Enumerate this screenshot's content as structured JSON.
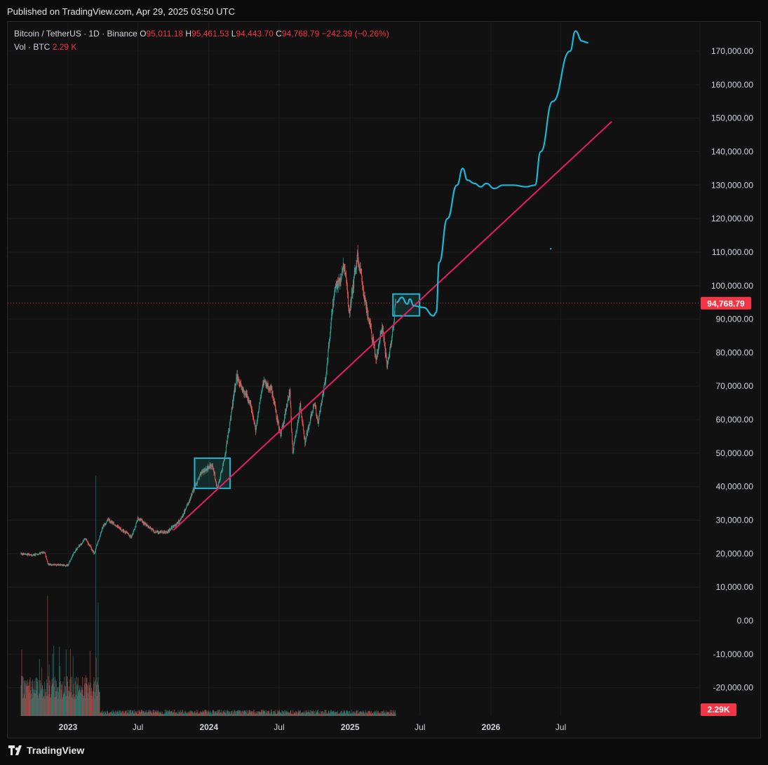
{
  "header": {
    "publish_text": "Published on TradingView.com, Apr 29, 2025 03:50 UTC"
  },
  "legend": {
    "symbol": "Bitcoin / TetherUS · 1D · Binance",
    "open_label": "O",
    "open": "95,011.18",
    "high_label": "H",
    "high": "95,461.53",
    "low_label": "L",
    "low": "94,443.70",
    "close_label": "C",
    "close": "94,768.79",
    "change": "−242.39 (−0.26%)",
    "volume_label": "Vol · BTC",
    "volume": "2.29 K"
  },
  "footer": {
    "brand": "TradingView"
  },
  "colors": {
    "background": "#111111",
    "up": "#26a69a",
    "down": "#ef5350",
    "trendline": "#e91e63",
    "projection": "#1fb6d4",
    "price_label": "#f23645"
  },
  "chart_data": {
    "type": "candlestick",
    "symbol": "BTCUSDT",
    "interval": "1D",
    "ylim": [
      -25000,
      180000
    ],
    "y_ticks": [
      170000,
      160000,
      150000,
      140000,
      130000,
      120000,
      110000,
      100000,
      90000,
      80000,
      70000,
      60000,
      50000,
      40000,
      30000,
      20000,
      10000,
      0,
      -10000,
      -20000
    ],
    "y_tick_labels": [
      "170,000.00",
      "160,000.00",
      "150,000.00",
      "140,000.00",
      "130,000.00",
      "120,000.00",
      "110,000.00",
      "100,000.00",
      "90,000.00",
      "80,000.00",
      "70,000.00",
      "60,000.00",
      "50,000.00",
      "40,000.00",
      "30,000.00",
      "20,000.00",
      "10,000.00",
      "0.00",
      "-10,000.00",
      "-20,000.00"
    ],
    "x_ticks": [
      {
        "date": "2023-01-01",
        "label": "2023",
        "bold": true
      },
      {
        "date": "2023-07-01",
        "label": "Jul",
        "bold": false
      },
      {
        "date": "2024-01-01",
        "label": "2024",
        "bold": true
      },
      {
        "date": "2024-07-01",
        "label": "Jul",
        "bold": false
      },
      {
        "date": "2025-01-01",
        "label": "2025",
        "bold": true
      },
      {
        "date": "2025-07-01",
        "label": "Jul",
        "bold": false
      },
      {
        "date": "2026-01-01",
        "label": "2026",
        "bold": true
      },
      {
        "date": "2026-07-01",
        "label": "Jul",
        "bold": false
      }
    ],
    "last_price": 94768.79,
    "last_price_label": "94,768.79",
    "volume_label": "2.29K",
    "price_path": [
      {
        "date": "2022-09-01",
        "price": 20000
      },
      {
        "date": "2022-10-01",
        "price": 19500
      },
      {
        "date": "2022-11-01",
        "price": 20500
      },
      {
        "date": "2022-11-10",
        "price": 16800
      },
      {
        "date": "2022-12-31",
        "price": 16500
      },
      {
        "date": "2023-01-20",
        "price": 21000
      },
      {
        "date": "2023-02-15",
        "price": 24500
      },
      {
        "date": "2023-03-10",
        "price": 20000
      },
      {
        "date": "2023-04-01",
        "price": 28000
      },
      {
        "date": "2023-04-15",
        "price": 30200
      },
      {
        "date": "2023-06-15",
        "price": 25000
      },
      {
        "date": "2023-07-01",
        "price": 30500
      },
      {
        "date": "2023-08-15",
        "price": 26500
      },
      {
        "date": "2023-09-15",
        "price": 26500
      },
      {
        "date": "2023-10-20",
        "price": 30000
      },
      {
        "date": "2023-11-15",
        "price": 37000
      },
      {
        "date": "2023-12-10",
        "price": 44000
      },
      {
        "date": "2024-01-10",
        "price": 46500
      },
      {
        "date": "2024-01-23",
        "price": 39500
      },
      {
        "date": "2024-02-10",
        "price": 48000
      },
      {
        "date": "2024-03-13",
        "price": 73000
      },
      {
        "date": "2024-04-20",
        "price": 64000
      },
      {
        "date": "2024-05-01",
        "price": 57000
      },
      {
        "date": "2024-05-20",
        "price": 71000
      },
      {
        "date": "2024-06-10",
        "price": 69500
      },
      {
        "date": "2024-07-05",
        "price": 55000
      },
      {
        "date": "2024-07-29",
        "price": 69000
      },
      {
        "date": "2024-08-05",
        "price": 50000
      },
      {
        "date": "2024-08-25",
        "price": 64000
      },
      {
        "date": "2024-09-06",
        "price": 53000
      },
      {
        "date": "2024-09-30",
        "price": 65000
      },
      {
        "date": "2024-10-10",
        "price": 59000
      },
      {
        "date": "2024-10-29",
        "price": 72000
      },
      {
        "date": "2024-11-12",
        "price": 88000
      },
      {
        "date": "2024-11-22",
        "price": 99000
      },
      {
        "date": "2024-12-05",
        "price": 101000
      },
      {
        "date": "2024-12-17",
        "price": 107000
      },
      {
        "date": "2024-12-30",
        "price": 92000
      },
      {
        "date": "2025-01-20",
        "price": 109000
      },
      {
        "date": "2025-02-05",
        "price": 98000
      },
      {
        "date": "2025-02-25",
        "price": 86000
      },
      {
        "date": "2025-03-10",
        "price": 78000
      },
      {
        "date": "2025-03-25",
        "price": 88000
      },
      {
        "date": "2025-04-07",
        "price": 76000
      },
      {
        "date": "2025-04-20",
        "price": 85000
      },
      {
        "date": "2025-04-29",
        "price": 94768.79
      }
    ],
    "trendline": [
      {
        "date": "2023-10-01",
        "price": 27000
      },
      {
        "date": "2026-11-10",
        "price": 149000
      }
    ],
    "highlight_boxes": [
      {
        "from": "2023-11-25",
        "to": "2024-02-25",
        "top": 48500,
        "bottom": 39500
      },
      {
        "from": "2025-04-22",
        "to": "2025-06-30",
        "top": 97500,
        "bottom": 91000
      }
    ],
    "projection_path": [
      {
        "date": "2025-05-01",
        "price": 95000
      },
      {
        "date": "2025-05-15",
        "price": 96500
      },
      {
        "date": "2025-05-29",
        "price": 94500
      },
      {
        "date": "2025-06-05",
        "price": 96000
      },
      {
        "date": "2025-06-15",
        "price": 94000
      },
      {
        "date": "2025-07-10",
        "price": 93500
      },
      {
        "date": "2025-08-05",
        "price": 91000
      },
      {
        "date": "2025-08-12",
        "price": 92000
      },
      {
        "date": "2025-08-20",
        "price": 107000
      },
      {
        "date": "2025-09-10",
        "price": 120000
      },
      {
        "date": "2025-10-05",
        "price": 130000
      },
      {
        "date": "2025-10-20",
        "price": 135000
      },
      {
        "date": "2025-11-01",
        "price": 131500
      },
      {
        "date": "2025-11-20",
        "price": 130500
      },
      {
        "date": "2025-12-05",
        "price": 129500
      },
      {
        "date": "2025-12-20",
        "price": 130500
      },
      {
        "date": "2026-01-10",
        "price": 129000
      },
      {
        "date": "2026-02-01",
        "price": 130000
      },
      {
        "date": "2026-03-01",
        "price": 130000
      },
      {
        "date": "2026-04-01",
        "price": 129500
      },
      {
        "date": "2026-04-25",
        "price": 130000
      },
      {
        "date": "2026-05-10",
        "price": 140000
      },
      {
        "date": "2026-06-10",
        "price": 155000
      },
      {
        "date": "2026-07-25",
        "price": 170000
      },
      {
        "date": "2026-08-08",
        "price": 176000
      },
      {
        "date": "2026-08-25",
        "price": 173000
      },
      {
        "date": "2026-09-10",
        "price": 172500
      }
    ],
    "projection_dot": {
      "date": "2026-06-05",
      "price": 111000
    },
    "volume_bars": {
      "from": "2022-09-01",
      "to": "2025-04-29",
      "spikes": [
        {
          "date": "2022-11-09",
          "btc": 180000
        },
        {
          "date": "2023-03-14",
          "btc": 200000
        },
        {
          "date": "2023-03-20",
          "btc": 170000
        },
        {
          "date": "2023-01-14",
          "btc": 90000
        }
      ],
      "baseline_high": 60000,
      "baseline_low": 6000,
      "ymax": 210000
    }
  }
}
